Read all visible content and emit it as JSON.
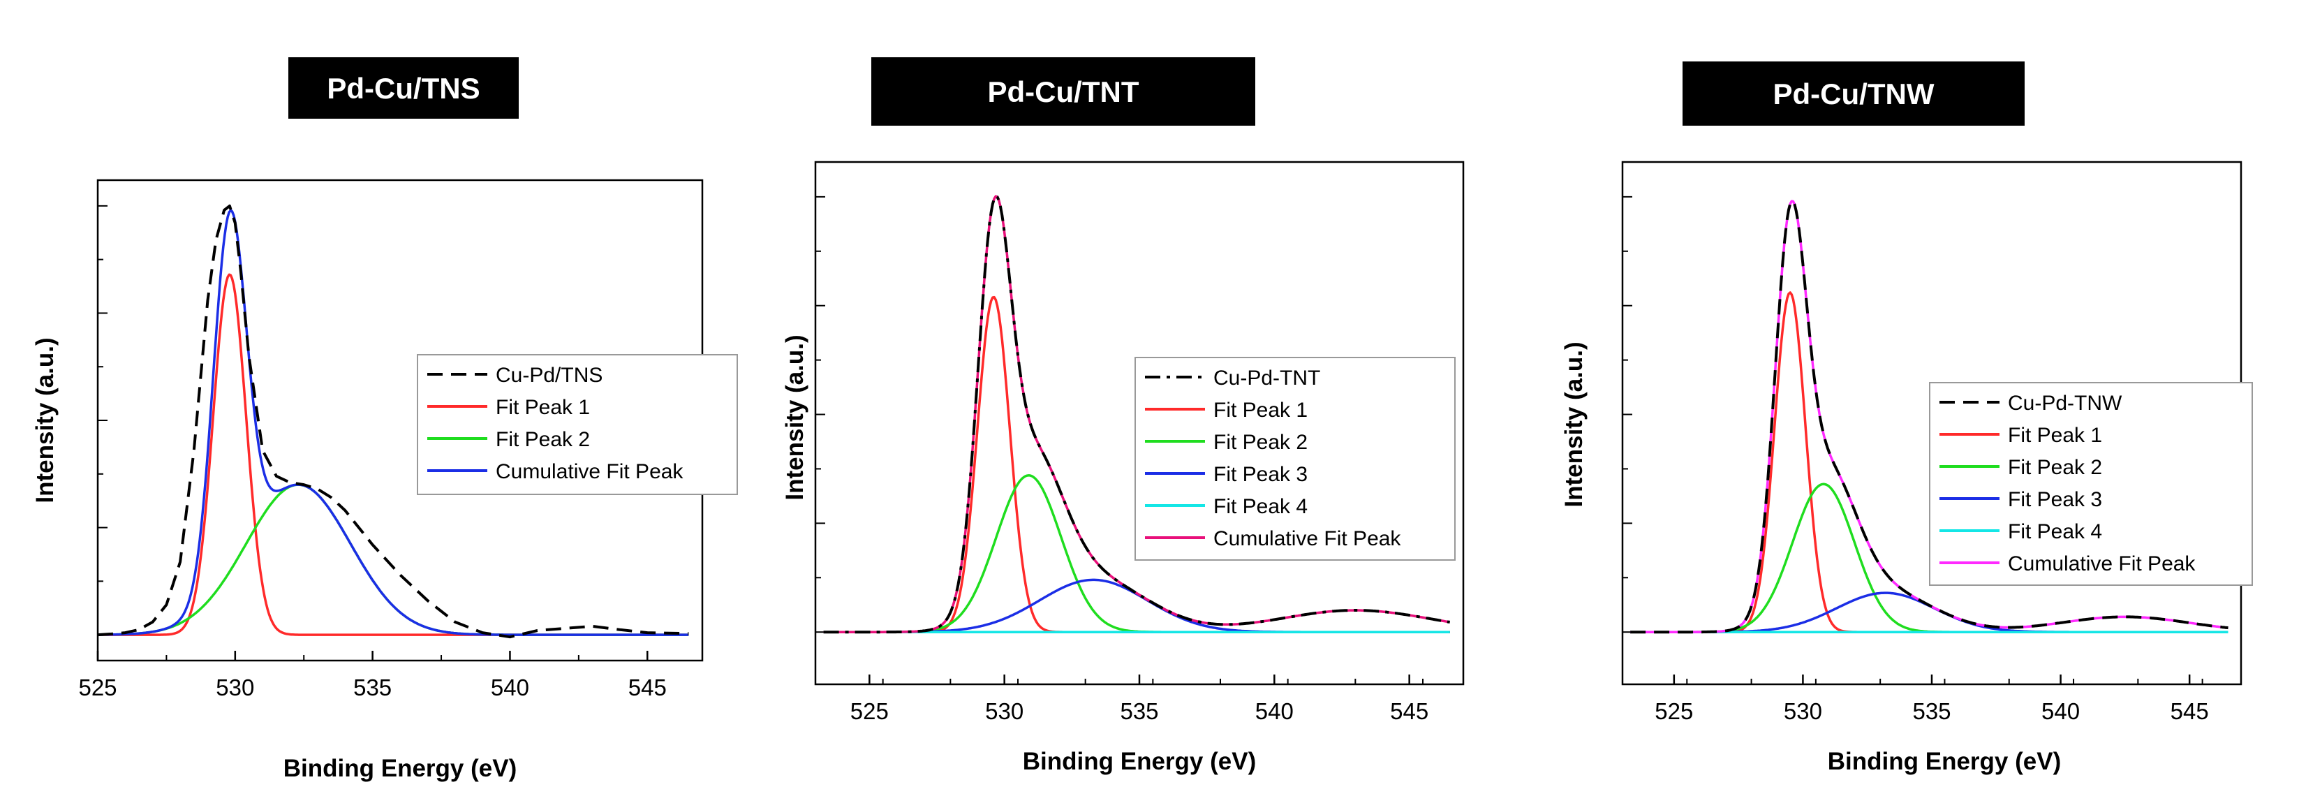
{
  "chart_data": [
    {
      "type": "line",
      "title": "Pd-Cu/TNS",
      "xlabel": "Binding Energy (eV)",
      "ylabel": "Intensity (a.u.)",
      "xlim": [
        525,
        547
      ],
      "ylim": [
        -0.06,
        1.06
      ],
      "xticks": [
        525,
        530,
        535,
        540,
        545
      ],
      "xtick_labels": [
        "525",
        "530",
        "535",
        "540",
        "545"
      ],
      "legend": {
        "position": "center-right"
      },
      "data_x": [
        525.0,
        525.5,
        526.0,
        526.5,
        527.0,
        527.5,
        528.0,
        528.5,
        529.0,
        529.3,
        529.6,
        529.8,
        530.0,
        530.2,
        530.5,
        531.0,
        531.5,
        532.0,
        532.5,
        533.0,
        533.5,
        534.0,
        535.0,
        536.0,
        537.0,
        538.0,
        539.0,
        540.0,
        541.0,
        542.0,
        543.0,
        544.0,
        545.0,
        546.5
      ],
      "data_y": [
        0.0,
        0.002,
        0.005,
        0.012,
        0.03,
        0.07,
        0.17,
        0.43,
        0.78,
        0.92,
        0.99,
        1.0,
        0.96,
        0.85,
        0.65,
        0.43,
        0.37,
        0.355,
        0.35,
        0.34,
        0.32,
        0.29,
        0.21,
        0.14,
        0.08,
        0.03,
        0.005,
        -0.005,
        0.01,
        0.015,
        0.02,
        0.012,
        0.005,
        0.003
      ],
      "series": [
        {
          "name": "Cu-Pd/TNS",
          "color": "#000000",
          "dash": "dash"
        },
        {
          "name": "Fit Peak 1",
          "color": "#ff2a2a",
          "peaks": [
            {
              "center": 529.8,
              "height": 0.84,
              "sigma": 0.6
            }
          ]
        },
        {
          "name": "Fit Peak 2",
          "color": "#1fdd1f",
          "peaks": [
            {
              "center": 532.3,
              "height": 0.35,
              "sigma": 1.9
            }
          ]
        },
        {
          "name": "Cumulative Fit Peak",
          "color": "#1b2ee6",
          "sum": true
        }
      ]
    },
    {
      "type": "line",
      "title": "Pd-Cu/TNT",
      "xlabel": "Binding Energy (eV)",
      "ylabel": "Intensity (a.u.)",
      "xlim": [
        523,
        547
      ],
      "ylim": [
        -0.12,
        1.08
      ],
      "xticks": [
        525,
        530,
        535,
        540,
        545
      ],
      "xtick_labels": [
        "525",
        "530",
        "535",
        "540",
        "545"
      ],
      "legend": {
        "position": "center-right"
      },
      "series": [
        {
          "name": "Cu-Pd-TNT",
          "color": "#000000",
          "dash": "dashdot",
          "sum": true
        },
        {
          "name": "Fit Peak 1",
          "color": "#ff2a2a",
          "peaks": [
            {
              "center": 529.6,
              "height": 0.77,
              "sigma": 0.6
            }
          ]
        },
        {
          "name": "Fit Peak 2",
          "color": "#1fdd1f",
          "peaks": [
            {
              "center": 530.9,
              "height": 0.36,
              "sigma": 1.2
            }
          ]
        },
        {
          "name": "Fit Peak 3",
          "color": "#1b2ee6",
          "peaks": [
            {
              "center": 533.3,
              "height": 0.12,
              "sigma": 2.0
            }
          ]
        },
        {
          "name": "Fit Peak 4",
          "color": "#14e6e6",
          "peaks": []
        },
        {
          "name": "Cumulative Fit Peak",
          "color": "#e8107a",
          "sum": true,
          "extra_peaks": [
            {
              "center": 543.0,
              "height": 0.05,
              "sigma": 2.8
            }
          ]
        }
      ]
    },
    {
      "type": "line",
      "title": "Pd-Cu/TNW",
      "xlabel": "Binding Energy (eV)",
      "ylabel": "Intensity (a.u.)",
      "xlim": [
        523,
        547
      ],
      "ylim": [
        -0.12,
        1.08
      ],
      "xticks": [
        525,
        530,
        535,
        540,
        545
      ],
      "xtick_labels": [
        "525",
        "530",
        "535",
        "540",
        "545"
      ],
      "legend": {
        "position": "center-right"
      },
      "series": [
        {
          "name": "Cu-Pd-TNW",
          "color": "#000000",
          "dash": "dash",
          "sum": true
        },
        {
          "name": "Fit Peak 1",
          "color": "#ff2a2a",
          "peaks": [
            {
              "center": 529.5,
              "height": 0.78,
              "sigma": 0.6
            }
          ]
        },
        {
          "name": "Fit Peak 2",
          "color": "#1fdd1f",
          "peaks": [
            {
              "center": 530.8,
              "height": 0.34,
              "sigma": 1.2
            }
          ]
        },
        {
          "name": "Fit Peak 3",
          "color": "#1b2ee6",
          "peaks": [
            {
              "center": 533.2,
              "height": 0.09,
              "sigma": 1.9
            }
          ]
        },
        {
          "name": "Fit Peak 4",
          "color": "#14e6e6",
          "peaks": []
        },
        {
          "name": "Cumulative Fit Peak",
          "color": "#ff2aff",
          "sum": true,
          "extra_peaks": [
            {
              "center": 542.5,
              "height": 0.035,
              "sigma": 2.5
            }
          ]
        }
      ]
    }
  ]
}
